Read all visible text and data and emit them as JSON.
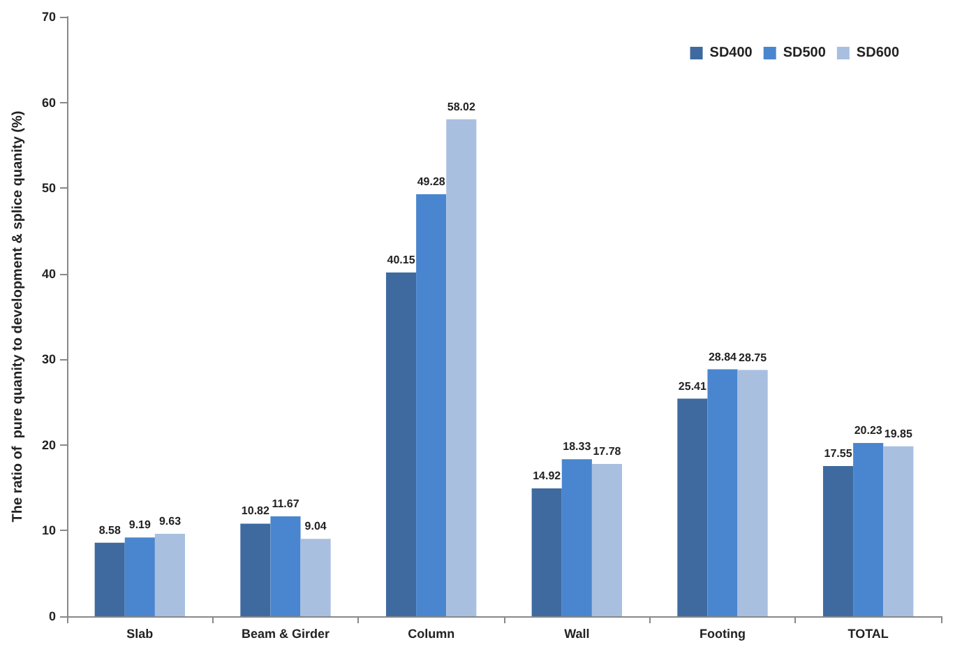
{
  "chart_data": {
    "type": "bar",
    "ylabel": "The ratio of  pure quanity to development & splice quanity (%)",
    "categories": [
      "Slab",
      "Beam & Girder",
      "Column",
      "Wall",
      "Footing",
      "TOTAL"
    ],
    "series": [
      {
        "name": "SD400",
        "color": "#3e6aa0",
        "values": [
          8.58,
          10.82,
          40.15,
          14.92,
          25.41,
          17.55
        ]
      },
      {
        "name": "SD500",
        "color": "#4a86cf",
        "values": [
          9.19,
          11.67,
          49.28,
          18.33,
          28.84,
          20.23
        ]
      },
      {
        "name": "SD600",
        "color": "#a9bfe0",
        "values": [
          9.63,
          9.04,
          58.02,
          17.78,
          28.75,
          19.85
        ]
      }
    ],
    "ylim": [
      0,
      70
    ],
    "yticks": [
      0,
      10,
      20,
      30,
      40,
      50,
      60,
      70
    ],
    "grid": false,
    "legend": "top right",
    "data_labels": true
  }
}
